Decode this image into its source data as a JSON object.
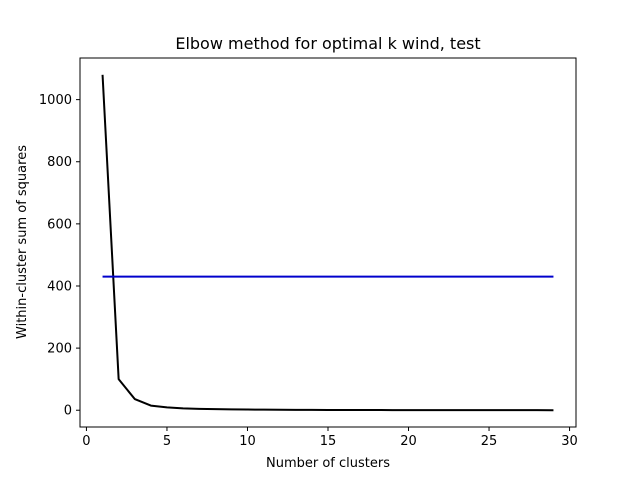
{
  "chart_data": {
    "type": "line",
    "title": "Elbow method for optimal k wind, test",
    "xlabel": "Number of clusters",
    "ylabel": "Within-cluster sum of squares",
    "xlim": [
      -0.4,
      30.4
    ],
    "ylim": [
      -54,
      1134
    ],
    "xticks": [
      0,
      5,
      10,
      15,
      20,
      25,
      30
    ],
    "yticks": [
      0,
      200,
      400,
      600,
      800,
      1000
    ],
    "grid": false,
    "series": [
      {
        "color": "#000000",
        "x": [
          1,
          2,
          3,
          4,
          5,
          6,
          7,
          8,
          9,
          10,
          11,
          12,
          13,
          14,
          15,
          16,
          17,
          18,
          19,
          20,
          21,
          22,
          23,
          24,
          25,
          26,
          27,
          28,
          29
        ],
        "y": [
          1080,
          100,
          36,
          15,
          9,
          6,
          4.5,
          3.5,
          2.8,
          2.2,
          1.8,
          1.5,
          1.3,
          1.1,
          0.9,
          0.8,
          0.7,
          0.6,
          0.5,
          0.45,
          0.4,
          0.35,
          0.3,
          0.25,
          0.22,
          0.2,
          0.18,
          0.15,
          0.12
        ]
      },
      {
        "color": "#0000cc",
        "x": [
          1,
          29
        ],
        "y": [
          430,
          430
        ]
      }
    ]
  }
}
